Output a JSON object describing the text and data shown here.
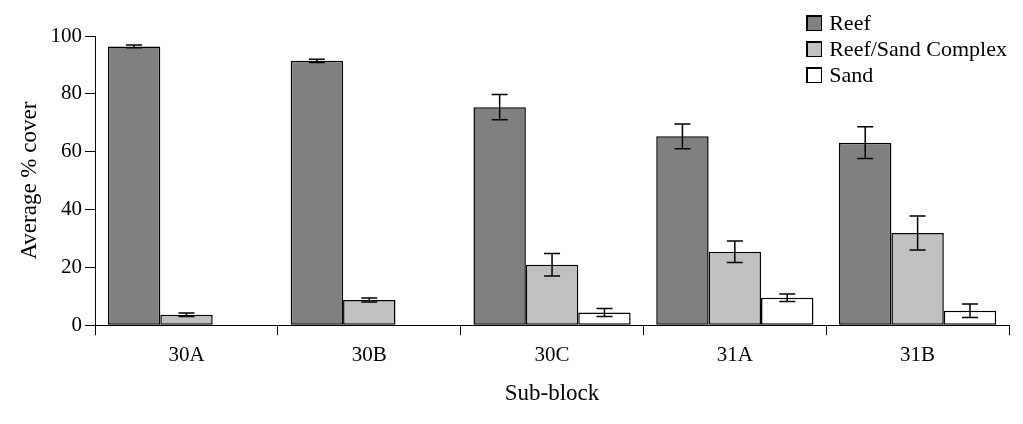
{
  "chart_data": {
    "type": "bar",
    "xlabel": "Sub-block",
    "ylabel": "Average % cover",
    "categories": [
      "30A",
      "30B",
      "30C",
      "31A",
      "31B"
    ],
    "series": [
      {
        "name": "Reef",
        "color": "#808080",
        "values": [
          96.4,
          91.4,
          75.4,
          65.3,
          63.1
        ],
        "errors": [
          0.5,
          0.6,
          4.4,
          4.3,
          5.5
        ]
      },
      {
        "name": "Reef/Sand Complex",
        "color": "#c0c0c0",
        "values": [
          3.6,
          8.7,
          20.9,
          25.4,
          31.9
        ],
        "errors": [
          0.6,
          0.7,
          3.9,
          3.7,
          5.9
        ]
      },
      {
        "name": "Sand",
        "color": "#ffffff",
        "values": [
          0,
          0,
          4.4,
          9.5,
          5.0
        ],
        "errors": [
          null,
          null,
          1.4,
          1.3,
          2.3
        ]
      }
    ],
    "ylim": [
      0,
      100
    ],
    "yticks": [
      0,
      20,
      40,
      60,
      80,
      100
    ],
    "grid": false,
    "legend": "top right"
  }
}
